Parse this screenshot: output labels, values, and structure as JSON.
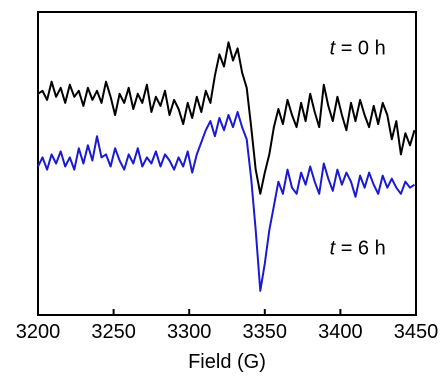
{
  "chart_data": {
    "type": "line",
    "xlabel": "Field (G)",
    "ylabel": "",
    "xlim": [
      3200,
      3450
    ],
    "ylim": [
      0,
      1
    ],
    "x_ticks": [
      3200,
      3250,
      3300,
      3350,
      3400,
      3450
    ],
    "x_tick_labels": [
      "3200",
      "3250",
      "3300",
      "3350",
      "3400",
      "3450"
    ],
    "grid": false,
    "series": [
      {
        "name": "t = 0 h",
        "color": "#000000",
        "x": [
          3200,
          3203,
          3206,
          3209,
          3212,
          3215,
          3218,
          3221,
          3224,
          3227,
          3230,
          3233,
          3236,
          3239,
          3242,
          3245,
          3248,
          3251,
          3254,
          3257,
          3260,
          3263,
          3266,
          3269,
          3272,
          3275,
          3278,
          3281,
          3284,
          3287,
          3290,
          3293,
          3296,
          3299,
          3302,
          3305,
          3308,
          3311,
          3314,
          3317,
          3320,
          3323,
          3326,
          3329,
          3332,
          3335,
          3338,
          3341,
          3344,
          3347,
          3350,
          3353,
          3356,
          3359,
          3362,
          3365,
          3368,
          3371,
          3374,
          3377,
          3380,
          3383,
          3386,
          3389,
          3392,
          3395,
          3398,
          3401,
          3404,
          3407,
          3410,
          3413,
          3416,
          3419,
          3422,
          3425,
          3428,
          3431,
          3434,
          3437,
          3440,
          3443,
          3446,
          3449
        ],
        "y": [
          0.73,
          0.74,
          0.71,
          0.77,
          0.72,
          0.75,
          0.7,
          0.76,
          0.72,
          0.74,
          0.69,
          0.75,
          0.71,
          0.74,
          0.7,
          0.77,
          0.72,
          0.66,
          0.73,
          0.7,
          0.75,
          0.68,
          0.73,
          0.7,
          0.76,
          0.67,
          0.72,
          0.69,
          0.74,
          0.66,
          0.71,
          0.68,
          0.63,
          0.7,
          0.65,
          0.72,
          0.67,
          0.74,
          0.7,
          0.79,
          0.86,
          0.82,
          0.9,
          0.84,
          0.88,
          0.8,
          0.75,
          0.62,
          0.48,
          0.4,
          0.47,
          0.53,
          0.62,
          0.68,
          0.63,
          0.71,
          0.66,
          0.62,
          0.7,
          0.64,
          0.73,
          0.67,
          0.62,
          0.76,
          0.69,
          0.64,
          0.72,
          0.66,
          0.61,
          0.7,
          0.64,
          0.71,
          0.66,
          0.62,
          0.69,
          0.63,
          0.7,
          0.66,
          0.58,
          0.64,
          0.53,
          0.6,
          0.56,
          0.61
        ]
      },
      {
        "name": "t = 6 h",
        "color": "#1a1ad2",
        "x": [
          3200,
          3203,
          3206,
          3209,
          3212,
          3215,
          3218,
          3221,
          3224,
          3227,
          3230,
          3233,
          3236,
          3239,
          3242,
          3245,
          3248,
          3251,
          3254,
          3257,
          3260,
          3263,
          3266,
          3269,
          3272,
          3275,
          3278,
          3281,
          3284,
          3287,
          3290,
          3293,
          3296,
          3299,
          3302,
          3305,
          3308,
          3311,
          3314,
          3317,
          3320,
          3323,
          3326,
          3329,
          3332,
          3335,
          3338,
          3341,
          3344,
          3347,
          3350,
          3353,
          3356,
          3359,
          3362,
          3365,
          3368,
          3371,
          3374,
          3377,
          3380,
          3383,
          3386,
          3389,
          3392,
          3395,
          3398,
          3401,
          3404,
          3407,
          3410,
          3413,
          3416,
          3419,
          3422,
          3425,
          3428,
          3431,
          3434,
          3437,
          3440,
          3443,
          3446,
          3449
        ],
        "y": [
          0.49,
          0.52,
          0.48,
          0.53,
          0.5,
          0.54,
          0.49,
          0.52,
          0.48,
          0.55,
          0.5,
          0.56,
          0.51,
          0.59,
          0.52,
          0.53,
          0.49,
          0.55,
          0.51,
          0.48,
          0.53,
          0.5,
          0.55,
          0.49,
          0.52,
          0.5,
          0.54,
          0.49,
          0.53,
          0.51,
          0.48,
          0.52,
          0.49,
          0.54,
          0.47,
          0.53,
          0.57,
          0.61,
          0.64,
          0.59,
          0.65,
          0.61,
          0.66,
          0.62,
          0.67,
          0.62,
          0.58,
          0.45,
          0.28,
          0.08,
          0.17,
          0.28,
          0.36,
          0.44,
          0.4,
          0.48,
          0.42,
          0.4,
          0.47,
          0.43,
          0.49,
          0.44,
          0.4,
          0.5,
          0.45,
          0.41,
          0.48,
          0.43,
          0.47,
          0.44,
          0.39,
          0.46,
          0.42,
          0.47,
          0.43,
          0.4,
          0.46,
          0.42,
          0.45,
          0.42,
          0.4,
          0.44,
          0.42,
          0.43
        ]
      }
    ],
    "annotations": [
      {
        "var": "t",
        "rest": " = 0 h",
        "x": 3430,
        "y": 0.86
      },
      {
        "var": "t",
        "rest": " = 6 h",
        "x": 3430,
        "y": 0.2
      }
    ]
  }
}
